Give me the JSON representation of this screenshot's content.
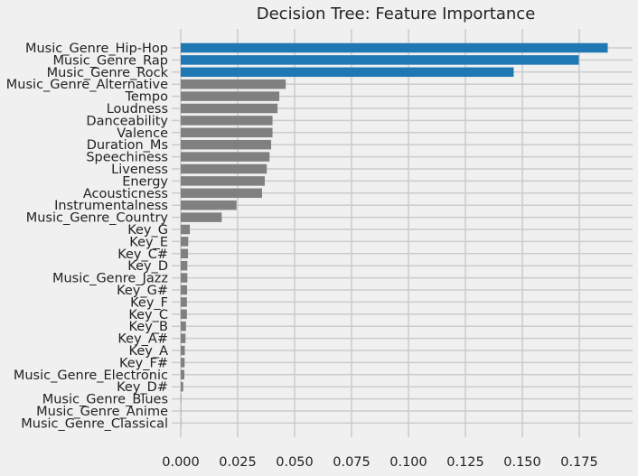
{
  "chart_data": {
    "type": "bar",
    "orientation": "horizontal",
    "title": "Decision Tree: Feature Importance",
    "xlabel": "",
    "ylabel": "",
    "xlim": [
      0,
      0.197
    ],
    "x_ticks": [
      "0.000",
      "0.025",
      "0.050",
      "0.075",
      "0.100",
      "0.125",
      "0.150",
      "0.175"
    ],
    "grid": true,
    "colors": {
      "highlight": "#1f77b4",
      "other": "#808080",
      "background": "#f0f0f0",
      "grid": "#cbcbcb"
    },
    "categories": [
      "Music_Genre_Hip-Hop",
      "Music_Genre_Rap",
      "Music_Genre_Rock",
      "Music_Genre_Alternative",
      "Tempo",
      "Loudness",
      "Danceability",
      "Valence",
      "Duration_Ms",
      "Speechiness",
      "Liveness",
      "Energy",
      "Acousticness",
      "Instrumentalness",
      "Music_Genre_Country",
      "Key_G",
      "Key_E",
      "Key_C#",
      "Key_D",
      "Music_Genre_Jazz",
      "Key_G#",
      "Key_F",
      "Key_C",
      "Key_B",
      "Key_A#",
      "Key_A",
      "Key_F#",
      "Music_Genre_Electronic",
      "Key_D#",
      "Music_Genre_Blues",
      "Music_Genre_Anime",
      "Music_Genre_Classical"
    ],
    "values": [
      0.1875,
      0.1748,
      0.1462,
      0.0461,
      0.0433,
      0.0425,
      0.0403,
      0.0403,
      0.0397,
      0.039,
      0.0378,
      0.0369,
      0.0357,
      0.0245,
      0.018,
      0.004,
      0.0033,
      0.0032,
      0.0029,
      0.0029,
      0.0028,
      0.0027,
      0.0027,
      0.0023,
      0.0021,
      0.0018,
      0.0017,
      0.0016,
      0.0011,
      0.0002,
      0.0001,
      0.0001
    ],
    "highlighted": [
      "Music_Genre_Hip-Hop",
      "Music_Genre_Rap",
      "Music_Genre_Rock"
    ]
  }
}
